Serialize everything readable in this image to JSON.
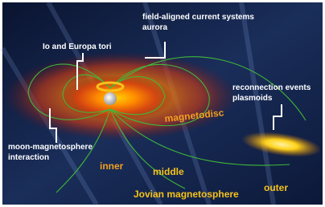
{
  "labels": {
    "field_aligned": [
      "field-aligned current systems",
      "aurora"
    ],
    "tori": "Io and Europa tori",
    "reconnection": [
      "reconnection events",
      "plasmoids"
    ],
    "magnetodisc": "magnetodisc",
    "moon": [
      "moon-magnetosphere",
      "interaction"
    ],
    "inner": "inner",
    "middle": "middle",
    "jovian": "Jovian magnetosphere",
    "outer": "outer"
  }
}
